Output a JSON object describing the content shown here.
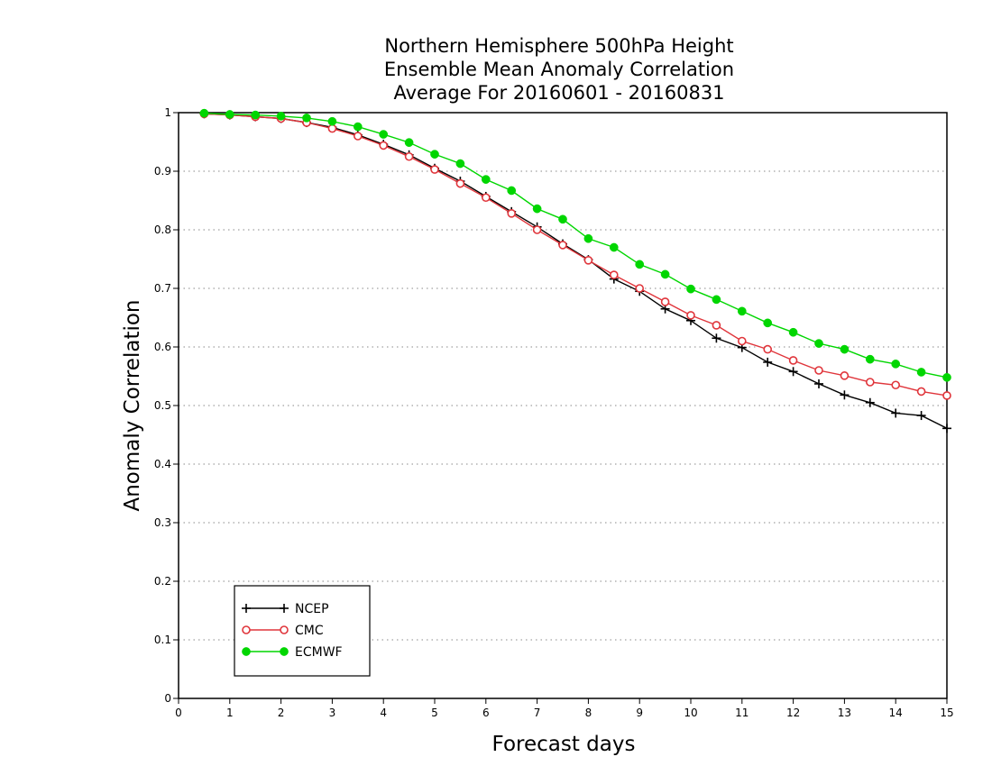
{
  "chart_data": {
    "type": "line",
    "title_lines": [
      "Northern Hemisphere 500hPa Height",
      "Ensemble Mean Anomaly Correlation",
      "Average For 20160601 - 20160831"
    ],
    "xlabel": "Forecast days",
    "ylabel": "Anomaly Correlation",
    "xlim": [
      0,
      15
    ],
    "ylim": [
      0,
      1
    ],
    "xticks": [
      "0",
      "1",
      "2",
      "3",
      "4",
      "5",
      "6",
      "7",
      "8",
      "9",
      "10",
      "11",
      "12",
      "13",
      "14",
      "15"
    ],
    "yticks": [
      "0",
      "0.1",
      "0.2",
      "0.3",
      "0.4",
      "0.5",
      "0.6",
      "0.7",
      "0.8",
      "0.9",
      "1"
    ],
    "grid": true,
    "legend_position": "bottom-left",
    "x": [
      0.5,
      1,
      1.5,
      2,
      2.5,
      3,
      3.5,
      4,
      4.5,
      5,
      5.5,
      6,
      6.5,
      7,
      7.5,
      8,
      8.5,
      9,
      9.5,
      10,
      10.5,
      11,
      11.5,
      12,
      12.5,
      13,
      13.5,
      14,
      14.5,
      15
    ],
    "series": [
      {
        "name": "NCEP",
        "color": "#000000",
        "marker": "plus",
        "values": [
          0.998,
          0.996,
          0.993,
          0.99,
          0.983,
          0.975,
          0.962,
          0.946,
          0.928,
          0.905,
          0.883,
          0.857,
          0.831,
          0.805,
          0.776,
          0.749,
          0.716,
          0.695,
          0.665,
          0.645,
          0.615,
          0.599,
          0.574,
          0.558,
          0.537,
          0.518,
          0.505,
          0.487,
          0.483,
          0.461
        ]
      },
      {
        "name": "CMC",
        "color": "#e0353b",
        "marker": "open-circle",
        "values": [
          0.998,
          0.996,
          0.993,
          0.99,
          0.983,
          0.973,
          0.96,
          0.944,
          0.925,
          0.903,
          0.879,
          0.855,
          0.828,
          0.8,
          0.774,
          0.748,
          0.723,
          0.7,
          0.677,
          0.654,
          0.637,
          0.61,
          0.596,
          0.577,
          0.56,
          0.551,
          0.54,
          0.535,
          0.524,
          0.517
        ]
      },
      {
        "name": "ECMWF",
        "color": "#00d600",
        "marker": "filled-circle",
        "values": [
          0.999,
          0.997,
          0.996,
          0.994,
          0.991,
          0.985,
          0.976,
          0.963,
          0.949,
          0.929,
          0.913,
          0.886,
          0.867,
          0.836,
          0.818,
          0.785,
          0.77,
          0.741,
          0.724,
          0.699,
          0.681,
          0.661,
          0.641,
          0.625,
          0.606,
          0.596,
          0.579,
          0.571,
          0.557,
          0.548
        ]
      }
    ]
  }
}
